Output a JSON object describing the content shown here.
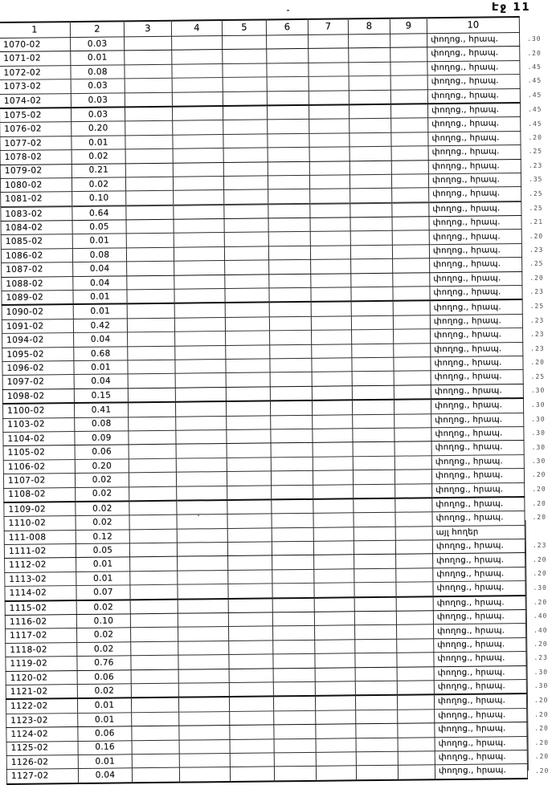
{
  "page": {
    "label": "Էջ 11"
  },
  "table": {
    "headers": [
      "1",
      "2",
      "3",
      "4",
      "5",
      "6",
      "7",
      "8",
      "9",
      "10"
    ],
    "rows": [
      {
        "id": "1070-02",
        "value": "0.03",
        "use": "փողոց., հրապ.",
        "mark": ".30"
      },
      {
        "id": "1071-02",
        "value": "0.01",
        "use": "փողոց., հրապ.",
        "mark": ".20"
      },
      {
        "id": "1072-02",
        "value": "0.08",
        "use": "փողոց., հրապ.",
        "mark": ".45"
      },
      {
        "id": "1073-02",
        "value": "0.03",
        "use": "փողոց., հրապ.",
        "mark": ".45"
      },
      {
        "id": "1074-02",
        "value": "0.03",
        "use": "փողոց., հրապ.",
        "mark": ".45"
      },
      {
        "id": "1075-02",
        "value": "0.03",
        "use": "փողոց., հրապ.",
        "mark": ".45"
      },
      {
        "id": "1076-02",
        "value": "0.20",
        "use": "փողոց., հրապ.",
        "mark": ".45"
      },
      {
        "id": "1077-02",
        "value": "0.01",
        "use": "փողոց., հրապ.",
        "mark": ".20"
      },
      {
        "id": "1078-02",
        "value": "0.02",
        "use": "փողոց., հրապ.",
        "mark": ".25"
      },
      {
        "id": "1079-02",
        "value": "0.21",
        "use": "փողոց., հրապ.",
        "mark": ".23"
      },
      {
        "id": "1080-02",
        "value": "0.02",
        "use": "փողոց., հրապ.",
        "mark": ".35"
      },
      {
        "id": "1081-02",
        "value": "0.10",
        "use": "փողոց., հրապ.",
        "mark": ".25"
      },
      {
        "id": "1083-02",
        "value": "0.64",
        "use": "փողոց., հրապ.",
        "mark": ".25"
      },
      {
        "id": "1084-02",
        "value": "0.05",
        "use": "փողոց., հրապ.",
        "mark": ".21"
      },
      {
        "id": "1085-02",
        "value": "0.01",
        "use": "փողոց., հրապ.",
        "mark": ".20"
      },
      {
        "id": "1086-02",
        "value": "0.08",
        "use": "փողոց., հրապ.",
        "mark": ".23"
      },
      {
        "id": "1087-02",
        "value": "0.04",
        "use": "փողոց., հրապ.",
        "mark": ".25"
      },
      {
        "id": "1088-02",
        "value": "0.04",
        "use": "փողոց., հրապ.",
        "mark": ".20"
      },
      {
        "id": "1089-02",
        "value": "0.01",
        "use": "փողոց., հրապ.",
        "mark": ".23"
      },
      {
        "id": "1090-02",
        "value": "0.01",
        "use": "փողոց., հրապ.",
        "mark": ".25"
      },
      {
        "id": "1091-02",
        "value": "0.42",
        "use": "փողոց., հրապ.",
        "mark": ".23"
      },
      {
        "id": "1094-02",
        "value": "0.04",
        "use": "փողոց., հրապ.",
        "mark": ".23"
      },
      {
        "id": "1095-02",
        "value": "0.68",
        "use": "փողոց., հրապ.",
        "mark": ".23"
      },
      {
        "id": "1096-02",
        "value": "0.01",
        "use": "փողոց., հրապ.",
        "mark": ".20"
      },
      {
        "id": "1097-02",
        "value": "0.04",
        "use": "փողոց., հրապ.",
        "mark": ".25"
      },
      {
        "id": "1098-02",
        "value": "0.15",
        "use": "փողոց., հրապ.",
        "mark": ".30"
      },
      {
        "id": "1100-02",
        "value": "0.41",
        "use": "փողոց., հրապ.",
        "mark": ".30"
      },
      {
        "id": "1103-02",
        "value": "0.08",
        "use": "փողոց., հրապ.",
        "mark": ".30"
      },
      {
        "id": "1104-02",
        "value": "0.09",
        "use": "փողոց., հրապ.",
        "mark": ".30"
      },
      {
        "id": "1105-02",
        "value": "0.06",
        "use": "փողոց., հրապ.",
        "mark": ".30"
      },
      {
        "id": "1106-02",
        "value": "0.20",
        "use": "փողոց., հրապ.",
        "mark": ".30"
      },
      {
        "id": "1107-02",
        "value": "0.02",
        "use": "փողոց., հրապ.",
        "mark": ".20"
      },
      {
        "id": "1108-02",
        "value": "0.02",
        "use": "փողոց., հրապ.",
        "mark": ".20"
      },
      {
        "id": "1109-02",
        "value": "0.02",
        "use": "փողոց., հրապ.",
        "mark": ".20"
      },
      {
        "id": "1110-02",
        "value": "0.02",
        "use": "փողոց., հրապ.",
        "mark": ".20"
      },
      {
        "id": "111-008",
        "value": "0.12",
        "use": "այլ հողեր",
        "mark": ""
      },
      {
        "id": "1111-02",
        "value": "0.05",
        "use": "փողոց., հրապ.",
        "mark": ".23"
      },
      {
        "id": "1112-02",
        "value": "0.01",
        "use": "փողոց., հրապ.",
        "mark": ".20"
      },
      {
        "id": "1113-02",
        "value": "0.01",
        "use": "փողոց., հրապ.",
        "mark": ".20"
      },
      {
        "id": "1114-02",
        "value": "0.07",
        "use": "փողոց., հրապ.",
        "mark": ".30"
      },
      {
        "id": "1115-02",
        "value": "0.02",
        "use": "փողոց., հրապ.",
        "mark": ".20"
      },
      {
        "id": "1116-02",
        "value": "0.10",
        "use": "փողոց., հրապ.",
        "mark": ".40"
      },
      {
        "id": "1117-02",
        "value": "0.02",
        "use": "փողոց., հրապ.",
        "mark": ".40"
      },
      {
        "id": "1118-02",
        "value": "0.02",
        "use": "փողոց., հրապ.",
        "mark": ".20"
      },
      {
        "id": "1119-02",
        "value": "0.76",
        "use": "փողոց., հրապ.",
        "mark": ".23"
      },
      {
        "id": "1120-02",
        "value": "0.06",
        "use": "փողոց., հրապ.",
        "mark": ".30"
      },
      {
        "id": "1121-02",
        "value": "0.02",
        "use": "փողոց., հրապ.",
        "mark": ".30"
      },
      {
        "id": "1122-02",
        "value": "0.01",
        "use": "փողոց., հրապ.",
        "mark": ".20"
      },
      {
        "id": "1123-02",
        "value": "0.01",
        "use": "փողոց., հրապ.",
        "mark": ".20"
      },
      {
        "id": "1124-02",
        "value": "0.06",
        "use": "փողոց., հրապ.",
        "mark": ".20"
      },
      {
        "id": "1125-02",
        "value": "0.16",
        "use": "փողոց., հրապ.",
        "mark": ".20"
      },
      {
        "id": "1126-02",
        "value": "0.01",
        "use": "փողոց., հրապ.",
        "mark": ".20"
      },
      {
        "id": "1127-02",
        "value": "0.04",
        "use": "փողոց., հրապ.",
        "mark": ".20"
      }
    ]
  }
}
